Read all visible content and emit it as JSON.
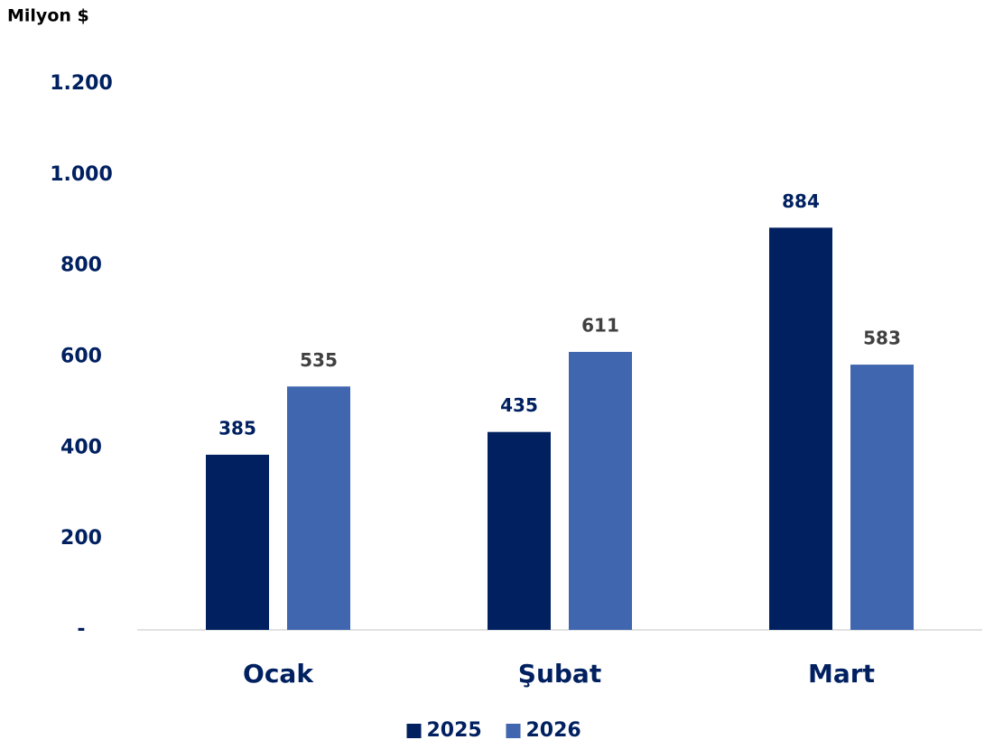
{
  "chart_data": {
    "type": "bar",
    "y_axis_label": "Milyon $",
    "categories": [
      "Ocak",
      "Şubat",
      "Mart"
    ],
    "series": [
      {
        "name": "2025",
        "color": "#002060",
        "values": [
          385,
          435,
          884
        ]
      },
      {
        "name": "2026",
        "color": "#3f66ae",
        "values": [
          535,
          611,
          583
        ]
      }
    ],
    "ylim": [
      0,
      1200
    ],
    "yticks": [
      {
        "value": 0,
        "label": "-"
      },
      200,
      400,
      600,
      800,
      {
        "value": 1000,
        "label": "1.000"
      },
      {
        "value": 1200,
        "label": "1.200"
      }
    ],
    "grid": false,
    "legend": "bottom"
  }
}
